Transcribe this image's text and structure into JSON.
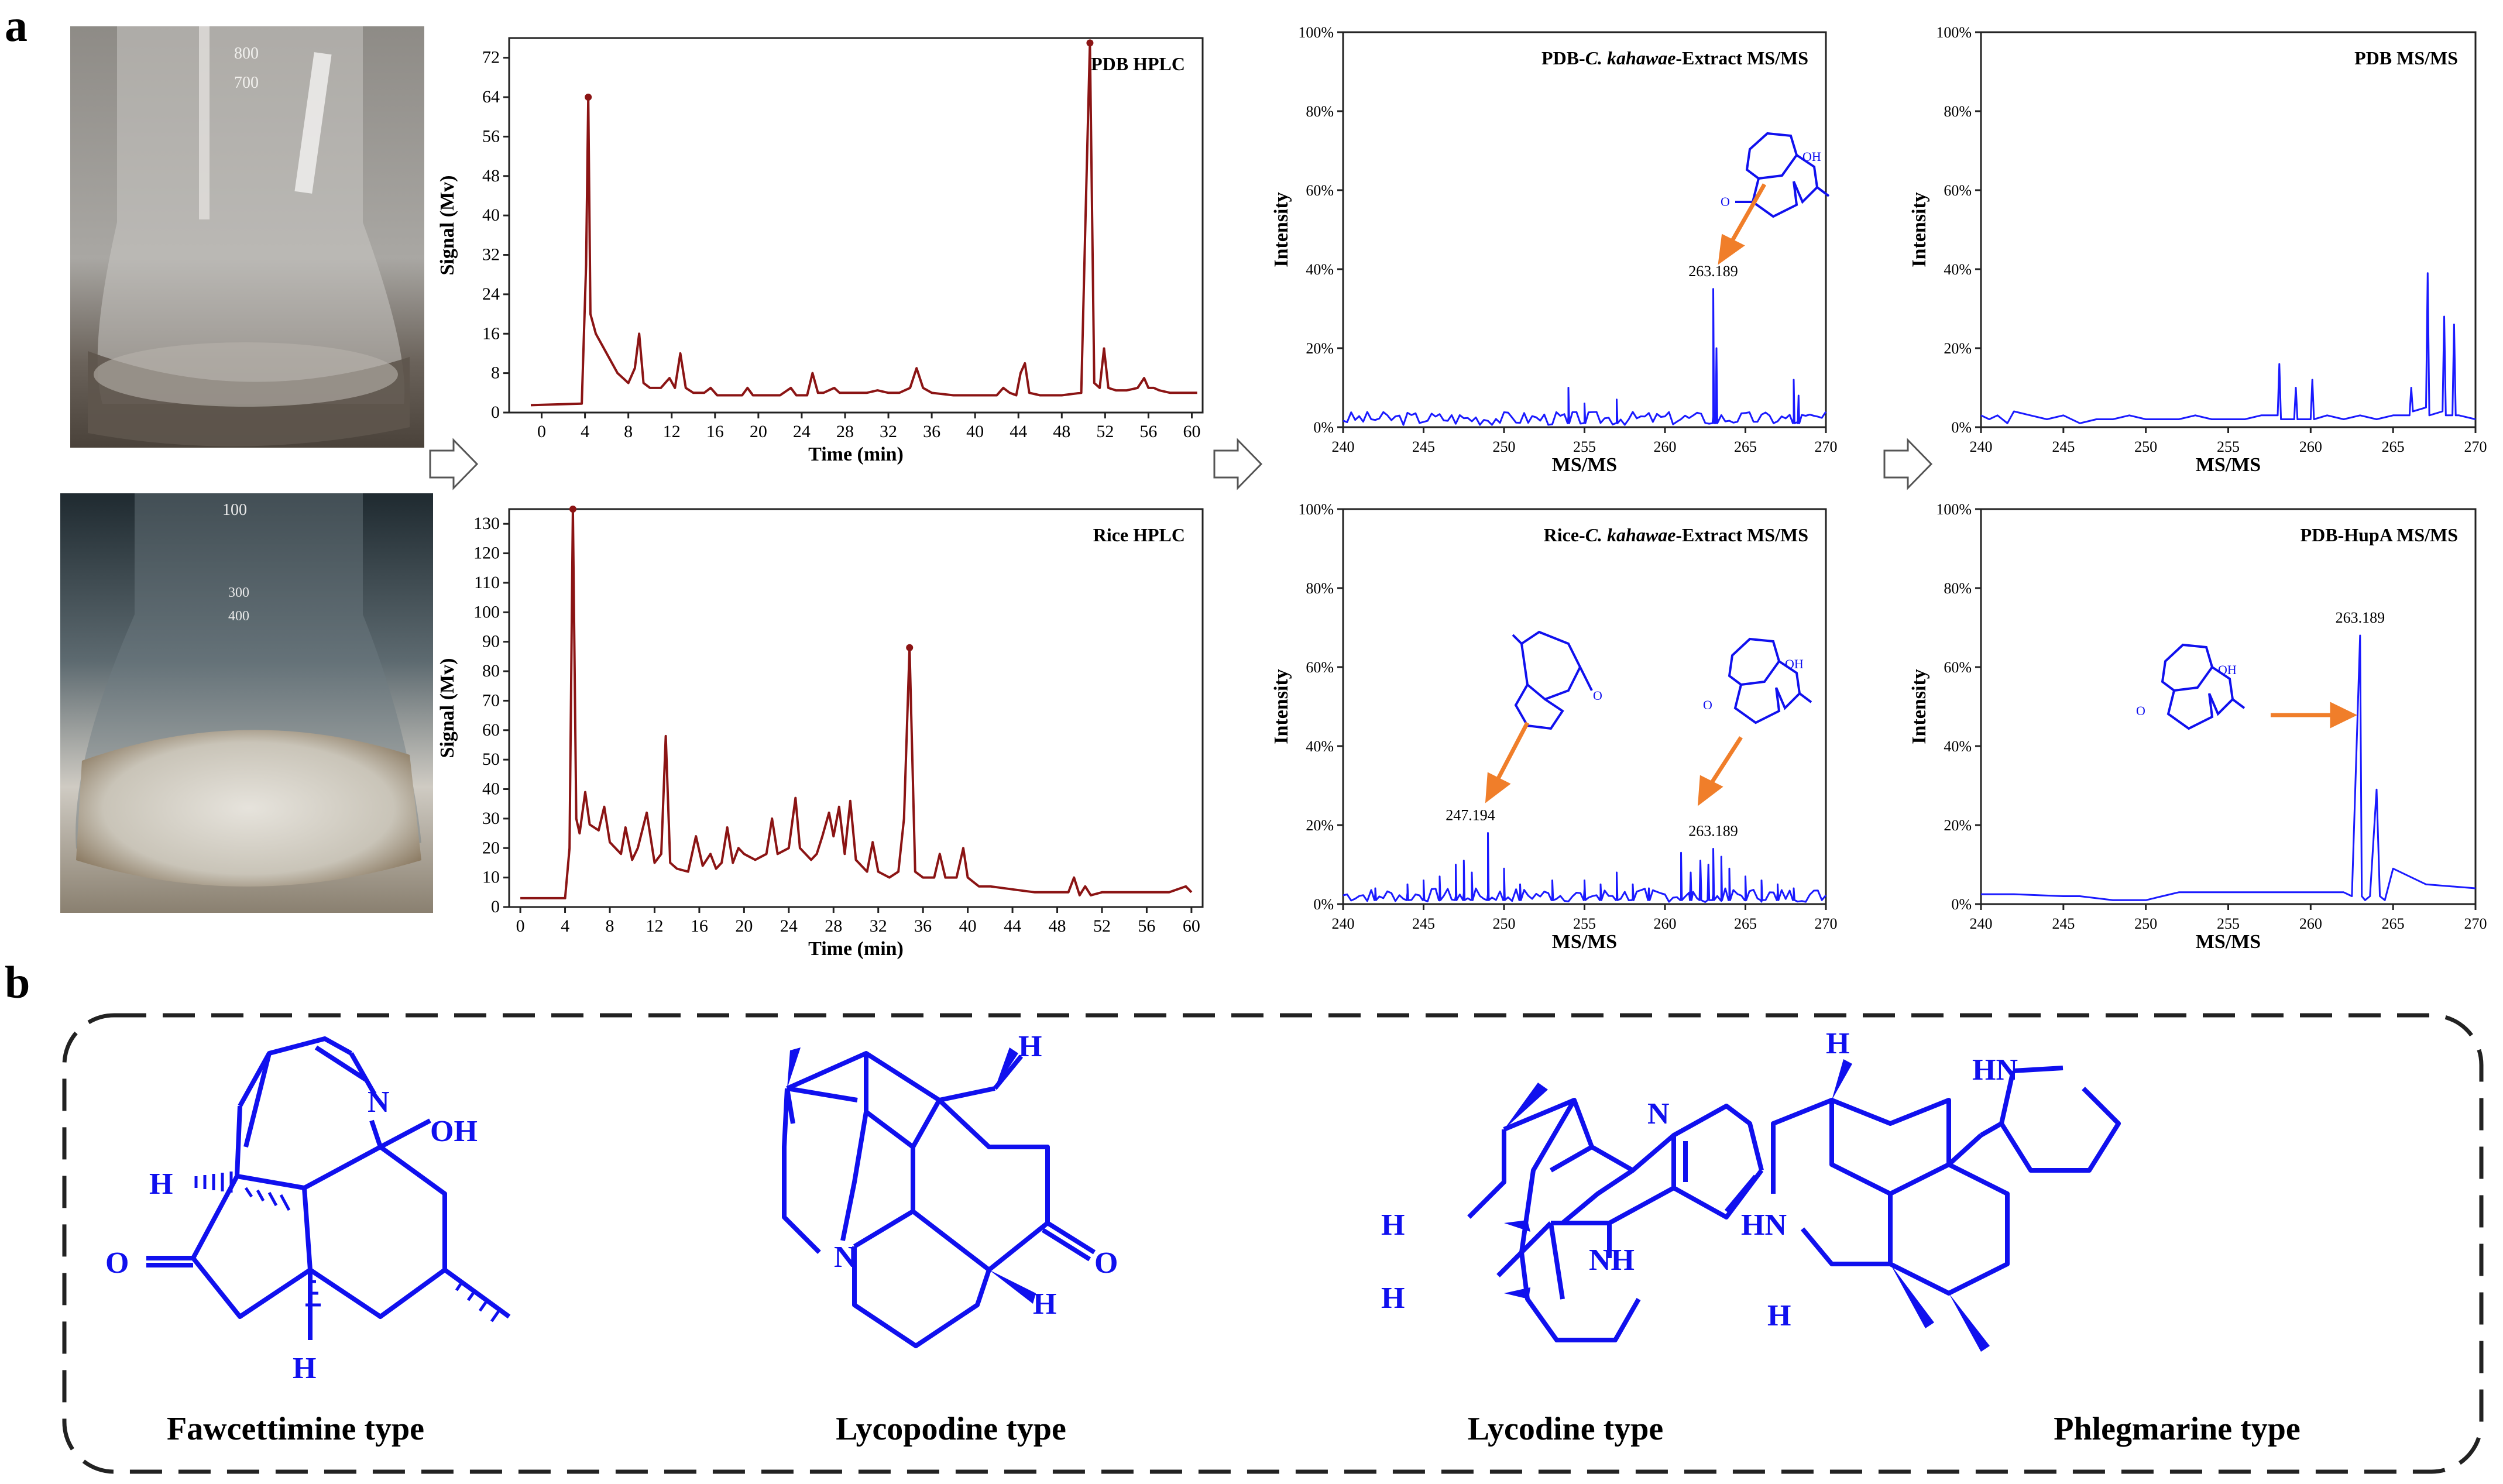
{
  "panel_labels": {
    "a": "a",
    "b": "b"
  },
  "photos": [
    {
      "id": "pdb-flask",
      "description_icon": "flask-with-liquid-medium",
      "colors": {
        "bg": "#7d7a76",
        "liquid": "#5f5750"
      }
    },
    {
      "id": "rice-flask",
      "description_icon": "flask-with-rice-medium",
      "colors": {
        "bg": "#2f3a3e",
        "rice": "#d9d6cf"
      }
    }
  ],
  "colors": {
    "hplc": "#8b1414",
    "ms": "#1a1aff",
    "structure": "#1010ee",
    "arrow_orange": "#f07e2a",
    "frame": "#333333"
  },
  "chart_data": [
    {
      "type": "line",
      "id": "pdb-hplc",
      "title": "PDB HPLC",
      "xlabel": "Time (min)",
      "ylabel": "Signal (Mv)",
      "xlim": [
        -3,
        61
      ],
      "ylim": [
        0,
        76
      ],
      "xticks": [
        0,
        4,
        8,
        12,
        16,
        20,
        24,
        28,
        32,
        36,
        40,
        44,
        48,
        52,
        56,
        60
      ],
      "yticks": [
        0,
        8,
        16,
        24,
        32,
        40,
        48,
        56,
        64,
        72
      ],
      "x": [
        -1,
        3.7,
        4.1,
        4.3,
        4.5,
        5,
        6,
        7,
        8,
        8.6,
        9,
        9.4,
        10,
        11,
        11.8,
        12.3,
        12.8,
        13.3,
        14,
        15,
        15.6,
        16.2,
        17,
        18.5,
        19,
        19.5,
        20,
        21,
        22,
        23,
        23.5,
        24,
        24.5,
        25,
        25.5,
        26,
        27,
        27.5,
        28,
        30,
        31,
        32,
        33,
        34,
        34.6,
        35.2,
        36,
        38,
        40,
        42,
        42.6,
        43.2,
        43.8,
        44.2,
        44.6,
        45,
        46,
        48,
        49.8,
        50.2,
        50.6,
        51,
        51.5,
        51.9,
        52.3,
        53,
        54,
        55,
        55.6,
        56,
        56.5,
        57,
        58,
        59,
        60,
        60.5
      ],
      "y": [
        1.5,
        1.8,
        30,
        64,
        20,
        16,
        12,
        8,
        6,
        9,
        16,
        6,
        5,
        5,
        7,
        5,
        12,
        5,
        4,
        4,
        5,
        3.5,
        3.5,
        3.5,
        5,
        3.5,
        3.5,
        3.5,
        3.5,
        5,
        3.5,
        3.5,
        3.5,
        8,
        4,
        4,
        5,
        4,
        4,
        4,
        4.5,
        4,
        4,
        5,
        9,
        5,
        4,
        3.5,
        3.5,
        3.5,
        5,
        4,
        3.5,
        8,
        10,
        4,
        3.5,
        3.5,
        4,
        40,
        75,
        6,
        5,
        13,
        5,
        4.5,
        4.5,
        5,
        7,
        5,
        5,
        4.5,
        4,
        4,
        4,
        4
      ],
      "markers": [
        [
          4.3,
          64
        ],
        [
          50.6,
          75
        ]
      ]
    },
    {
      "type": "line",
      "id": "rice-hplc",
      "title": "Rice HPLC",
      "xlabel": "Time (min)",
      "ylabel": "Signal (Mv)",
      "xlim": [
        -1,
        61
      ],
      "ylim": [
        0,
        135
      ],
      "xticks": [
        0,
        4,
        8,
        12,
        16,
        20,
        24,
        28,
        32,
        36,
        40,
        44,
        48,
        52,
        56,
        60
      ],
      "yticks": [
        0,
        10,
        20,
        30,
        40,
        50,
        60,
        70,
        80,
        90,
        100,
        110,
        120,
        130
      ],
      "x": [
        0,
        4,
        4.4,
        4.7,
        5,
        5.3,
        5.8,
        6.2,
        7,
        7.5,
        8,
        9,
        9.4,
        10,
        10.5,
        11.3,
        12,
        12.6,
        13,
        13.4,
        14,
        15,
        15.7,
        16.3,
        17,
        17.5,
        18,
        18.5,
        19,
        19.5,
        20,
        21,
        22,
        22.5,
        23,
        24,
        24.6,
        25,
        26,
        26.5,
        27,
        27.6,
        28,
        28.5,
        29,
        29.5,
        30,
        31,
        31.5,
        32,
        33,
        33.8,
        34.3,
        34.8,
        35.3,
        36,
        37,
        37.5,
        38,
        39,
        39.6,
        40,
        41,
        42,
        44,
        46,
        48,
        49,
        49.5,
        50,
        50.5,
        51,
        52,
        54,
        56,
        58,
        59.5,
        60
      ],
      "y": [
        3,
        3,
        20,
        135,
        30,
        25,
        39,
        28,
        26,
        34,
        22,
        18,
        27,
        16,
        20,
        32,
        15,
        18,
        58,
        15,
        13,
        12,
        24,
        14,
        18,
        13,
        15,
        27,
        15,
        20,
        18,
        16,
        18,
        30,
        18,
        20,
        37,
        20,
        16,
        18,
        24,
        32,
        24,
        34,
        18,
        36,
        16,
        12,
        22,
        12,
        10,
        12,
        30,
        88,
        12,
        10,
        10,
        18,
        10,
        10,
        20,
        10,
        7,
        7,
        6,
        5,
        5,
        5,
        10,
        4,
        7,
        4,
        5,
        5,
        5,
        5,
        7,
        5
      ],
      "markers": [
        [
          4.7,
          135
        ],
        [
          34.8,
          88
        ]
      ]
    },
    {
      "type": "line",
      "id": "pdb-extract-msms",
      "title": "PDB-C. kahawae-Extract MS/MS",
      "title_parts": [
        "PDB-",
        "C. kahawae",
        "-Extract MS/MS"
      ],
      "xlabel": "MS/MS",
      "ylabel": "Intensity",
      "xlim": [
        240,
        270
      ],
      "ylim": [
        0,
        100
      ],
      "xticks": [
        240,
        245,
        250,
        255,
        260,
        265,
        270
      ],
      "yticks": [
        "0%",
        "20%",
        "40%",
        "60%",
        "80%",
        "100%"
      ],
      "baseline_seed": 3,
      "spikes": [
        [
          254,
          10
        ],
        [
          255,
          6
        ],
        [
          257,
          7
        ],
        [
          263,
          35
        ],
        [
          263.2,
          20
        ],
        [
          268,
          12
        ],
        [
          268.3,
          8
        ]
      ],
      "annotations": [
        {
          "x": 263,
          "y": 35,
          "label": "263.189"
        }
      ]
    },
    {
      "type": "line",
      "id": "pdb-msms",
      "title": "PDB  MS/MS",
      "xlabel": "MS/MS",
      "ylabel": "Intensity",
      "xlim": [
        240,
        270
      ],
      "ylim": [
        0,
        100
      ],
      "xticks": [
        240,
        245,
        250,
        255,
        260,
        265,
        270
      ],
      "yticks": [
        "0%",
        "20%",
        "40%",
        "60%",
        "80%",
        "100%"
      ],
      "x": [
        240,
        240.5,
        241,
        241.6,
        242,
        243,
        244,
        245,
        246,
        247,
        248,
        249,
        250,
        251,
        252,
        253,
        254,
        255,
        256,
        257,
        258,
        258.1,
        258.2,
        259,
        259.1,
        259.2,
        260,
        260.1,
        260.2,
        261,
        262,
        263,
        264,
        265,
        266,
        266.1,
        266.2,
        267,
        267.1,
        267.2,
        268,
        268.1,
        268.2,
        268.6,
        268.7,
        268.8,
        269,
        270
      ],
      "y": [
        3,
        2,
        3,
        1,
        4,
        3,
        2,
        3,
        1,
        2,
        2,
        3,
        2,
        2,
        2,
        3,
        2,
        2,
        2,
        3,
        3,
        16,
        2,
        2,
        10,
        2,
        2,
        12,
        2,
        3,
        2,
        3,
        2,
        3,
        3,
        10,
        4,
        5,
        39,
        3,
        4,
        28,
        3,
        3,
        26,
        3,
        3,
        2
      ]
    },
    {
      "type": "line",
      "id": "rice-extract-msms",
      "title": "Rice-C. kahawae-Extract MS/MS",
      "title_parts": [
        "Rice-",
        "C. kahawae",
        "-Extract MS/MS"
      ],
      "xlabel": "MS/MS",
      "ylabel": "Intensity",
      "xlim": [
        240,
        270
      ],
      "ylim": [
        0,
        100
      ],
      "xticks": [
        240,
        245,
        250,
        255,
        260,
        265,
        270
      ],
      "yticks": [
        "0%",
        "20%",
        "40%",
        "60%",
        "80%",
        "100%"
      ],
      "baseline_seed": 7,
      "spikes": [
        [
          242,
          4
        ],
        [
          244,
          5
        ],
        [
          245,
          6
        ],
        [
          246,
          7
        ],
        [
          247,
          10
        ],
        [
          247.5,
          11
        ],
        [
          248,
          8
        ],
        [
          249,
          18
        ],
        [
          250,
          9
        ],
        [
          251,
          5
        ],
        [
          253,
          6
        ],
        [
          255,
          6
        ],
        [
          256,
          5
        ],
        [
          257,
          8
        ],
        [
          258,
          5
        ],
        [
          259,
          4
        ],
        [
          261,
          13
        ],
        [
          261.6,
          8
        ],
        [
          262.2,
          11
        ],
        [
          262.7,
          10
        ],
        [
          263,
          14
        ],
        [
          263.5,
          12
        ],
        [
          264,
          9
        ],
        [
          265,
          7
        ],
        [
          266,
          6
        ],
        [
          267,
          5
        ],
        [
          268,
          4
        ]
      ],
      "annotations": [
        {
          "x": 249,
          "y": 18,
          "label": "247.194"
        },
        {
          "x": 263,
          "y": 14,
          "label": "263.189"
        }
      ]
    },
    {
      "type": "line",
      "id": "pdb-hupa-msms",
      "title": "PDB-HupA MS/MS",
      "xlabel": "MS/MS",
      "ylabel": "Intensity",
      "xlim": [
        240,
        270
      ],
      "ylim": [
        0,
        100
      ],
      "xticks": [
        240,
        245,
        250,
        255,
        260,
        265,
        270
      ],
      "yticks": [
        "0%",
        "20%",
        "40%",
        "60%",
        "80%",
        "100%"
      ],
      "x": [
        240,
        242,
        245,
        246,
        248,
        250,
        251,
        252,
        253,
        255,
        258,
        260,
        262,
        262.5,
        263,
        263.1,
        263.3,
        263.6,
        264,
        264.2,
        264.5,
        265,
        267,
        270
      ],
      "y": [
        2.5,
        2.5,
        2,
        2,
        1,
        1,
        2,
        3,
        3,
        3,
        3,
        3,
        3,
        2,
        68,
        2,
        1,
        2,
        29,
        2,
        1,
        9,
        5,
        4
      ],
      "annotations": [
        {
          "x": 263,
          "y": 68,
          "label": "263.189"
        }
      ]
    }
  ],
  "structures": [
    {
      "id": "fawcettimine",
      "label": "Fawcettimine type",
      "atoms": [
        "N",
        "OH",
        "H",
        "O",
        "H"
      ]
    },
    {
      "id": "lycopodine",
      "label": "Lycopodine type",
      "atoms": [
        "H",
        "N",
        "O",
        "H"
      ]
    },
    {
      "id": "lycodine",
      "label": "Lycodine type",
      "atoms": [
        "N",
        "H",
        "NH",
        "H"
      ]
    },
    {
      "id": "phlegmarine",
      "label": "Phlegmarine type",
      "atoms": [
        "HN",
        "H",
        "HN",
        "H"
      ]
    }
  ]
}
